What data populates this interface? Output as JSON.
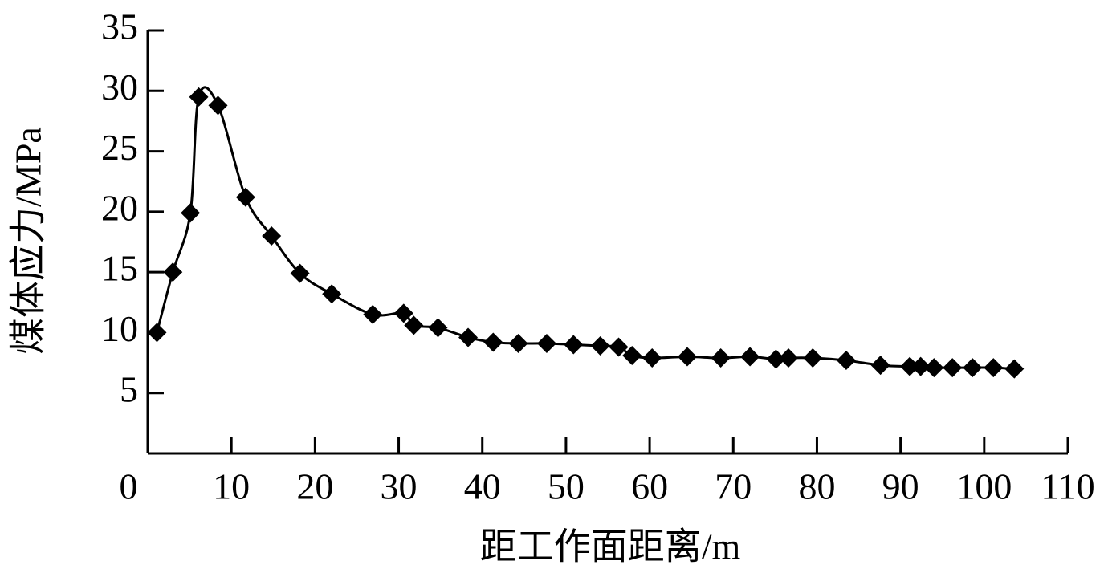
{
  "chart_data": {
    "type": "line",
    "x_label": "距工作面距离/m",
    "y_label": "煤体应力/MPa",
    "x": [
      1.1,
      3.0,
      5.1,
      6.1,
      8.4,
      11.7,
      14.8,
      18.2,
      22.0,
      26.9,
      30.6,
      31.8,
      34.7,
      38.3,
      41.3,
      44.3,
      47.7,
      50.9,
      54.1,
      56.3,
      57.9,
      60.3,
      64.5,
      68.5,
      72.0,
      75.1,
      76.6,
      79.5,
      83.5,
      87.6,
      91.1,
      92.4,
      94.0,
      96.2,
      98.6,
      101.1,
      103.6
    ],
    "series": [
      {
        "color": "#000000",
        "marker": "diamond",
        "smooth": true,
        "values": [
          10.0,
          15.0,
          19.9,
          29.5,
          28.8,
          21.2,
          18.0,
          14.9,
          13.2,
          11.5,
          11.6,
          10.6,
          10.4,
          9.6,
          9.2,
          9.1,
          9.1,
          9.0,
          8.9,
          8.8,
          8.1,
          7.9,
          8.0,
          7.9,
          8.0,
          7.8,
          7.9,
          7.9,
          7.7,
          7.3,
          7.2,
          7.2,
          7.1,
          7.1,
          7.1,
          7.1,
          7.0
        ]
      }
    ],
    "xlim": [
      0,
      110
    ],
    "xticks": [
      0,
      10,
      20,
      30,
      40,
      50,
      60,
      70,
      80,
      90,
      100,
      110
    ],
    "ylim": [
      0,
      35
    ],
    "yticks": [
      5,
      10,
      15,
      20,
      25,
      30,
      35
    ],
    "grid": false
  }
}
